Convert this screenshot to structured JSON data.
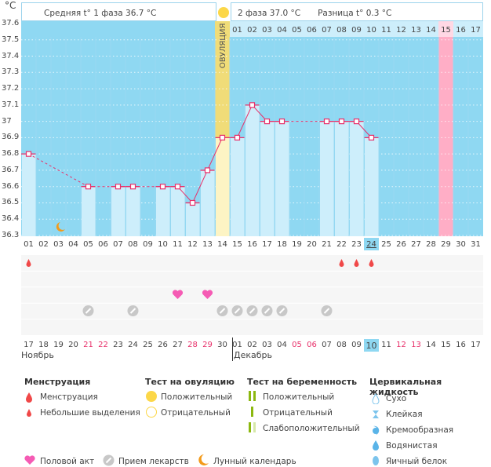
{
  "header": {
    "unit": "°C",
    "phase1": "Средняя t° 1 фаза 36.7 °C",
    "phase2": "2 фаза 37.0 °C",
    "diff": "Разница t° 0.3 °C",
    "ovulation": "ОВУЛЯЦИЯ"
  },
  "chart_data": {
    "type": "line",
    "ylim": [
      36.3,
      37.6
    ],
    "yticks": [
      "37.6",
      "37.5",
      "37.4",
      "37.3",
      "37.2",
      "37.1",
      "37",
      "36.9",
      "36.8",
      "36.7",
      "36.6",
      "36.5",
      "36.4",
      "36.3"
    ],
    "cycle_days": [
      "01",
      "02",
      "03",
      "04",
      "05",
      "06",
      "07",
      "08",
      "09",
      "10",
      "11",
      "12",
      "13",
      "14",
      "15",
      "16",
      "17",
      "18",
      "19",
      "20",
      "21",
      "22",
      "23",
      "24",
      "25",
      "26",
      "27",
      "28",
      "29",
      "30",
      "31"
    ],
    "top_dates": [
      "01",
      "02",
      "03",
      "04",
      "05",
      "06",
      "07",
      "08",
      "09",
      "10",
      "11",
      "12",
      "13",
      "14",
      "15",
      "16",
      "17"
    ],
    "temperatures": [
      36.8,
      null,
      null,
      null,
      36.6,
      null,
      36.6,
      36.6,
      null,
      36.6,
      36.6,
      36.5,
      36.7,
      36.9,
      36.9,
      37.1,
      37.0,
      37.0,
      null,
      null,
      37.0,
      37.0,
      37.0,
      36.9,
      null,
      null,
      null,
      null,
      null,
      null,
      null
    ],
    "ovulation_day": 14,
    "today_day": 24,
    "expected_period_day": 29,
    "moon_day": 3,
    "colors": {
      "bg": "#8fd8f2",
      "bar": "#cdeefb",
      "line": "#e8306a",
      "ovulation": "#f5e38a",
      "period": "#ffaec6",
      "today": "#8fd8f2"
    }
  },
  "markers": {
    "menstruation_days": [
      1,
      22,
      23,
      24
    ],
    "intercourse_days": [
      11,
      13
    ],
    "medication_days": [
      5,
      8,
      14,
      15,
      16,
      17,
      18,
      21
    ]
  },
  "calendar": {
    "dates": [
      "17",
      "18",
      "19",
      "20",
      "21",
      "22",
      "23",
      "24",
      "25",
      "26",
      "27",
      "28",
      "29",
      "30",
      "01",
      "02",
      "03",
      "04",
      "05",
      "06",
      "07",
      "08",
      "09",
      "10",
      "11",
      "12",
      "13",
      "14",
      "15",
      "16",
      "17"
    ],
    "weekend": [
      5,
      6,
      12,
      13,
      19,
      20,
      26,
      27
    ],
    "months": [
      "Ноябрь",
      "Декабрь"
    ]
  },
  "legend": {
    "menstruation": {
      "title": "Менструация",
      "items": [
        "Менструация",
        "Небольшие выделения"
      ]
    },
    "ovulation_test": {
      "title": "Тест на овуляцию",
      "items": [
        "Положительный",
        "Отрицательный"
      ]
    },
    "pregnancy_test": {
      "title": "Тест на беременность",
      "items": [
        "Положительный",
        "Отрицательный",
        "Слабоположительный"
      ]
    },
    "cervical": {
      "title": "Цервикальная жидкость",
      "items": [
        "Сухо",
        "Клейкая",
        "Кремообразная",
        "Водянистая",
        "Яичный белок"
      ]
    },
    "other": [
      "Половой акт",
      "Прием лекарств",
      "Лунный календарь"
    ]
  }
}
